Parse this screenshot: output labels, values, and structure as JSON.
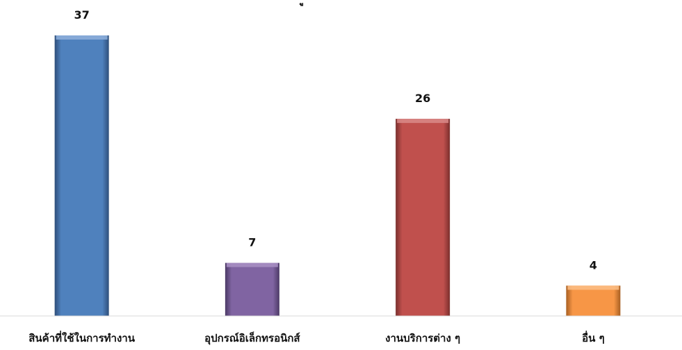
{
  "chart_data": {
    "type": "bar",
    "title_fragment": "ู้",
    "categories": [
      "สินค้าที่ใช้ในการทำงาน",
      "อุปกรณ์อิเล็กทรอนิกส์",
      "งานบริการต่าง ๆ",
      "อื่น ๆ"
    ],
    "values": [
      37,
      7,
      26,
      4
    ],
    "value_labels": [
      "37",
      "7",
      "26",
      "4"
    ],
    "bar_colors": [
      "#4F81BD",
      "#8064A2",
      "#C0504D",
      "#F79646"
    ],
    "bar_dark_colors": [
      "#2E4E7A",
      "#4C3A66",
      "#7A2F2D",
      "#A85F22"
    ],
    "bar_light_colors": [
      "#8FB0DC",
      "#A991C4",
      "#D98A88",
      "#FBBE86"
    ],
    "ylim": [
      0,
      37
    ],
    "grid": false,
    "legend": "none",
    "xlabel": "",
    "ylabel": ""
  }
}
